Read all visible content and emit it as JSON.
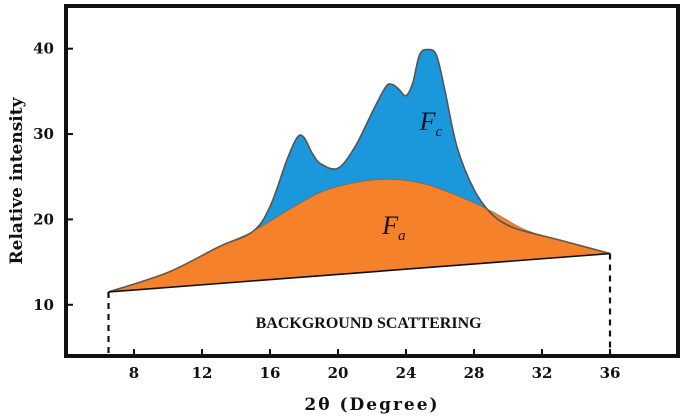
{
  "chart_data": {
    "type": "area",
    "title": "",
    "xlabel": "2θ (Degree)",
    "ylabel": "Relative intensity",
    "xlim": [
      4,
      40
    ],
    "ylim": [
      4,
      45
    ],
    "x_ticks": [
      8,
      12,
      16,
      20,
      24,
      28,
      32,
      36
    ],
    "y_ticks": [
      10,
      20,
      30,
      40
    ],
    "grid": false,
    "legend": "none",
    "series": [
      {
        "name": "Fc",
        "color": "#1b97db",
        "x": [
          6.5,
          10,
          13,
          15,
          16,
          17,
          17.6,
          18,
          18.5,
          19,
          20,
          21,
          22,
          22.8,
          23.2,
          23.6,
          24,
          24.4,
          24.8,
          25.3,
          25.8,
          26.3,
          27,
          28,
          29,
          30,
          31,
          33,
          36
        ],
        "y": [
          11.5,
          13.8,
          16.8,
          18.6,
          21.5,
          27.0,
          29.6,
          29.6,
          27.7,
          26.5,
          26.0,
          28.5,
          32.5,
          35.5,
          35.8,
          35.2,
          34.5,
          36.0,
          39.3,
          39.9,
          39.2,
          35.0,
          28.5,
          23.5,
          20.7,
          19.3,
          18.6,
          17.6,
          16.0
        ]
      },
      {
        "name": "Fa",
        "color": "#f5812a",
        "x": [
          6.5,
          10,
          13,
          15,
          17,
          19,
          21,
          23,
          25,
          27,
          29,
          31,
          33,
          36
        ],
        "y": [
          11.5,
          13.8,
          16.8,
          18.6,
          21.0,
          23.2,
          24.3,
          24.7,
          24.2,
          22.8,
          21.0,
          18.8,
          17.6,
          16.0
        ]
      },
      {
        "name": "BACKGROUND SCATTERING",
        "color": "#ffffff",
        "x": [
          6.5,
          36
        ],
        "y": [
          11.5,
          16.0
        ]
      }
    ],
    "annotations": [
      {
        "text": "F",
        "sub": "c",
        "x": 24.8,
        "y": 30.5
      },
      {
        "text": "F",
        "sub": "a",
        "x": 22.6,
        "y": 18.3
      },
      {
        "text": "BACKGROUND SCATTERING",
        "x": 21.8,
        "y": 7.3
      }
    ],
    "dashed_verticals": [
      6.5,
      36
    ]
  }
}
